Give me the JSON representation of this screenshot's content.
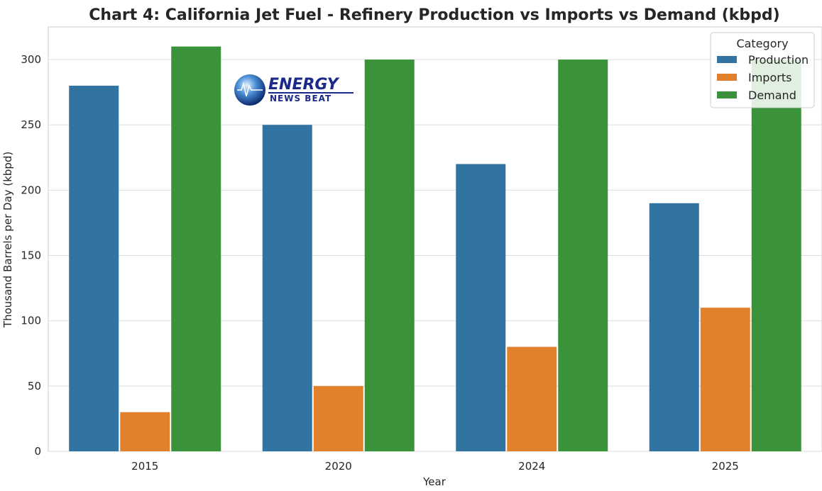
{
  "chart_data": {
    "type": "bar",
    "title": "Chart 4: California Jet Fuel - Refinery Production vs Imports vs Demand (kbpd)",
    "xlabel": "Year",
    "ylabel": "Thousand Barrels per Day (kbpd)",
    "categories": [
      "2015",
      "2020",
      "2024",
      "2025"
    ],
    "series": [
      {
        "name": "Production",
        "color": "#3274a1",
        "values": [
          280,
          250,
          220,
          190
        ]
      },
      {
        "name": "Imports",
        "color": "#e1812c",
        "values": [
          30,
          50,
          80,
          110
        ]
      },
      {
        "name": "Demand",
        "color": "#3a923a",
        "values": [
          310,
          300,
          300,
          300
        ]
      }
    ],
    "ylim": [
      0,
      325
    ],
    "yticks": [
      0,
      50,
      100,
      150,
      200,
      250,
      300
    ],
    "grid": true,
    "legend": {
      "title": "Category",
      "placement": "top-right"
    }
  },
  "logo": {
    "line1": "ENERGY",
    "line2": "NEWS BEAT"
  }
}
